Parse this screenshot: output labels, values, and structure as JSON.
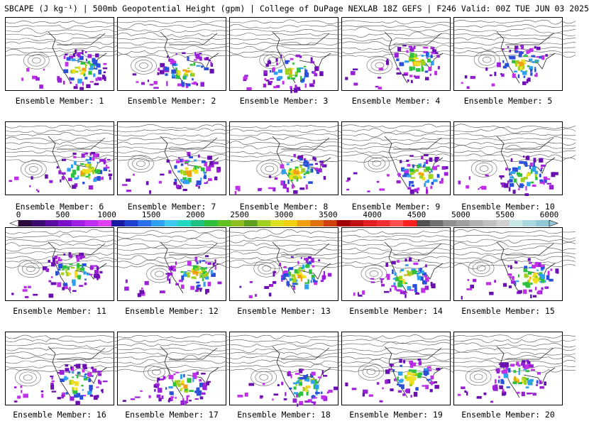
{
  "title": "SBCAPE (J kg⁻¹) | 500mb Geopotential Height (gpm) | College of DuPage NEXLAB 18Z GEFS | F246 Valid: 00Z TUE JUN 03 2025",
  "members": [
    {
      "label": "Ensemble Member: 1"
    },
    {
      "label": "Ensemble Member: 2"
    },
    {
      "label": "Ensemble Member: 3"
    },
    {
      "label": "Ensemble Member: 4"
    },
    {
      "label": "Ensemble Member: 5"
    },
    {
      "label": "Ensemble Member: 6"
    },
    {
      "label": "Ensemble Member: 7"
    },
    {
      "label": "Ensemble Member: 8"
    },
    {
      "label": "Ensemble Member: 9"
    },
    {
      "label": "Ensemble Member: 10"
    },
    {
      "label": "Ensemble Member: 11"
    },
    {
      "label": "Ensemble Member: 12"
    },
    {
      "label": "Ensemble Member: 13"
    },
    {
      "label": "Ensemble Member: 14"
    },
    {
      "label": "Ensemble Member: 15"
    },
    {
      "label": "Ensemble Member: 16"
    },
    {
      "label": "Ensemble Member: 17"
    },
    {
      "label": "Ensemble Member: 18"
    },
    {
      "label": "Ensemble Member: 19"
    },
    {
      "label": "Ensemble Member: 20"
    }
  ],
  "colorbar": {
    "ticks": [
      "0",
      "500",
      "1000",
      "1500",
      "2000",
      "2500",
      "3000",
      "3500",
      "4000",
      "4500",
      "5000",
      "5500",
      "6000"
    ],
    "colors": [
      "#2a0a3a",
      "#3c0a6e",
      "#5a0ca0",
      "#7a10c8",
      "#a020e0",
      "#c030f0",
      "#e040f0",
      "#1a1aa0",
      "#2040d0",
      "#2a70e8",
      "#30a0f0",
      "#40c8f0",
      "#20d8c0",
      "#20c080",
      "#30c040",
      "#60c020",
      "#90c020",
      "#60a020",
      "#a0d020",
      "#e0e020",
      "#f0d010",
      "#f0a010",
      "#e07010",
      "#d04010",
      "#a00000",
      "#c01010",
      "#e02020",
      "#f03030",
      "#ff5050",
      "#ff2020",
      "#505050",
      "#707070",
      "#909090",
      "#a0a0a0",
      "#b0b0b0",
      "#c0c0c0",
      "#d0d0d0",
      "#c8e8e8",
      "#a8d8e0",
      "#90c8d8"
    ]
  }
}
